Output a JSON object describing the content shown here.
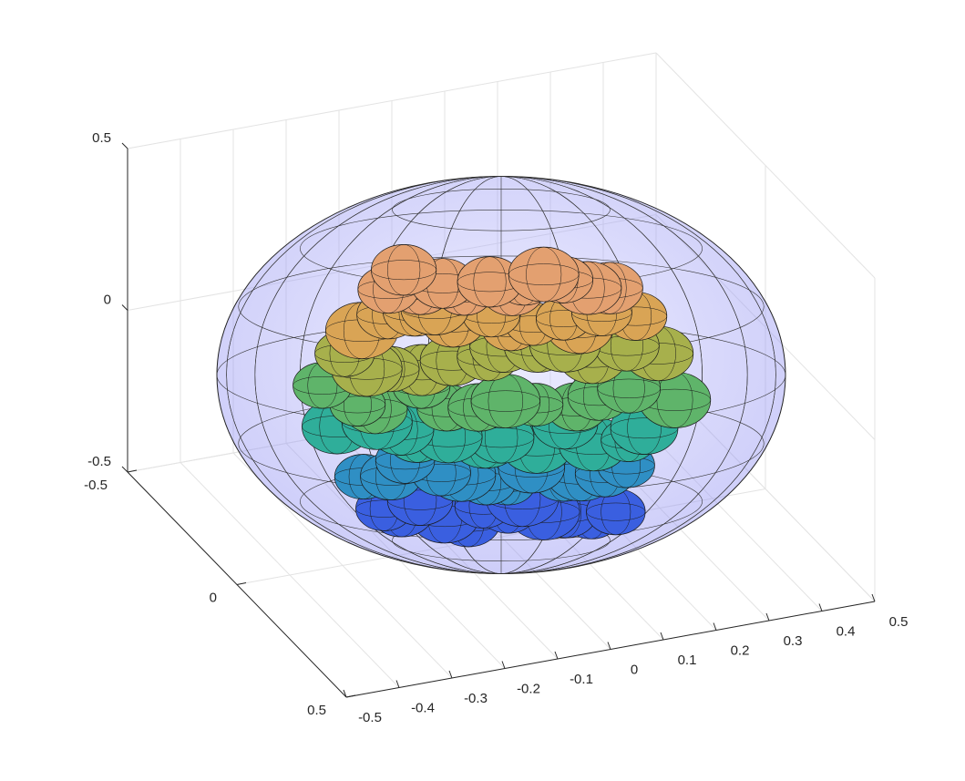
{
  "chart_data": {
    "type": "surface3d",
    "xlim": [
      -0.5,
      0.5
    ],
    "xticks": [
      -0.5,
      -0.4,
      -0.3,
      -0.2,
      -0.1,
      0,
      0.1,
      0.2,
      0.3,
      0.4,
      0.5
    ],
    "ylim": [
      -0.5,
      0.5
    ],
    "yticks": [
      -0.5,
      0,
      0.5
    ],
    "zlim": [
      -0.5,
      0.5
    ],
    "zticks": [
      -0.5,
      0,
      0.5
    ],
    "grid": true
  }
}
